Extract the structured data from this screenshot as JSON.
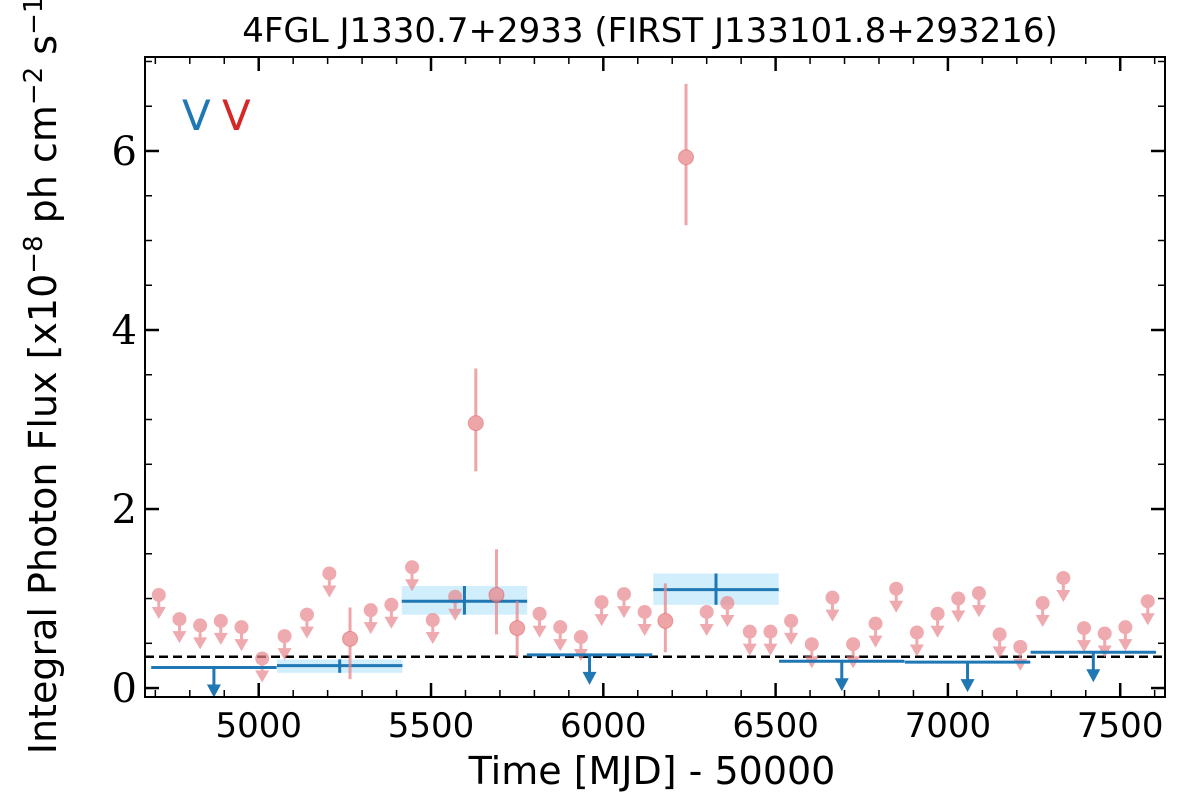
{
  "chart_data": {
    "type": "scatter",
    "title": "4FGL J1330.7+2933 (FIRST J133101.8+293216)",
    "xlabel": "Time [MJD] - 50000",
    "ylabel": "Integral Photon Flux [x10",
    "ylabel_exp": "−8",
    "ylabel_units_a": " ph cm",
    "ylabel_units_exp_a": "−2",
    "ylabel_units_b": " s",
    "ylabel_units_exp_b": "−1",
    "ylabel_close": "]",
    "xlim": [
      4670,
      7630
    ],
    "ylim": [
      -0.1,
      7.05
    ],
    "xticks": [
      5000,
      5500,
      6000,
      6500,
      7000,
      7500
    ],
    "yticks": [
      0,
      2,
      4,
      6
    ],
    "grid": false,
    "legend": {
      "placement": "top-left",
      "entries": [
        {
          "label": "V",
          "color": "#1f77b4"
        },
        {
          "label": "V",
          "color": "#d62728"
        }
      ]
    },
    "baseline": {
      "y": 0.35,
      "style": "dashed",
      "color": "#000000"
    },
    "colors": {
      "long_bins": "#1f77b4",
      "long_bin_band": "#c8ebfb",
      "short_bins": "#e8878c",
      "short_bins_dark": "#d62728"
    },
    "series": [
      {
        "name": "long_bins_detections",
        "points": [
          {
            "x": 5235,
            "y": 0.25,
            "xerr": 182,
            "ylo": 0.17,
            "yhi": 0.32
          },
          {
            "x": 5597,
            "y": 0.97,
            "xerr": 182,
            "ylo": 0.82,
            "yhi": 1.14
          },
          {
            "x": 6327,
            "y": 1.1,
            "xerr": 182,
            "ylo": 0.93,
            "yhi": 1.28
          }
        ]
      },
      {
        "name": "long_bins_upper_limits",
        "points": [
          {
            "x": 4870,
            "y": 0.23,
            "xerr": 182
          },
          {
            "x": 5960,
            "y": 0.37,
            "xerr": 182
          },
          {
            "x": 6692,
            "y": 0.3,
            "xerr": 182
          },
          {
            "x": 7057,
            "y": 0.29,
            "xerr": 182
          },
          {
            "x": 7422,
            "y": 0.4,
            "xerr": 182
          }
        ]
      },
      {
        "name": "short_bins_detections",
        "points": [
          {
            "x": 5265,
            "y": 0.55,
            "ylo": 0.1,
            "yhi": 0.9
          },
          {
            "x": 5630,
            "y": 2.96,
            "ylo": 2.42,
            "yhi": 3.57
          },
          {
            "x": 5690,
            "y": 1.04,
            "ylo": 0.6,
            "yhi": 1.55
          },
          {
            "x": 5750,
            "y": 0.67,
            "ylo": 0.35,
            "yhi": 0.97
          },
          {
            "x": 6180,
            "y": 0.75,
            "ylo": 0.4,
            "yhi": 1.17
          },
          {
            "x": 6240,
            "y": 5.93,
            "ylo": 5.17,
            "yhi": 6.75
          }
        ]
      },
      {
        "name": "short_bins_upper_limits",
        "points": [
          {
            "x": 4710,
            "y": 1.04
          },
          {
            "x": 4770,
            "y": 0.77
          },
          {
            "x": 4830,
            "y": 0.7
          },
          {
            "x": 4890,
            "y": 0.75
          },
          {
            "x": 4950,
            "y": 0.68
          },
          {
            "x": 5010,
            "y": 0.33
          },
          {
            "x": 5075,
            "y": 0.58
          },
          {
            "x": 5140,
            "y": 0.82
          },
          {
            "x": 5205,
            "y": 1.28
          },
          {
            "x": 5325,
            "y": 0.87
          },
          {
            "x": 5385,
            "y": 0.93
          },
          {
            "x": 5445,
            "y": 1.35
          },
          {
            "x": 5505,
            "y": 0.76
          },
          {
            "x": 5570,
            "y": 1.02
          },
          {
            "x": 5815,
            "y": 0.83
          },
          {
            "x": 5875,
            "y": 0.68
          },
          {
            "x": 5935,
            "y": 0.57
          },
          {
            "x": 5995,
            "y": 0.96
          },
          {
            "x": 6060,
            "y": 1.05
          },
          {
            "x": 6120,
            "y": 0.85
          },
          {
            "x": 6300,
            "y": 0.85
          },
          {
            "x": 6360,
            "y": 0.95
          },
          {
            "x": 6425,
            "y": 0.63
          },
          {
            "x": 6485,
            "y": 0.63
          },
          {
            "x": 6545,
            "y": 0.75
          },
          {
            "x": 6605,
            "y": 0.49
          },
          {
            "x": 6665,
            "y": 1.01
          },
          {
            "x": 6725,
            "y": 0.49
          },
          {
            "x": 6790,
            "y": 0.72
          },
          {
            "x": 6850,
            "y": 1.11
          },
          {
            "x": 6910,
            "y": 0.62
          },
          {
            "x": 6970,
            "y": 0.83
          },
          {
            "x": 7030,
            "y": 1.0
          },
          {
            "x": 7090,
            "y": 1.06
          },
          {
            "x": 7150,
            "y": 0.6
          },
          {
            "x": 7210,
            "y": 0.46
          },
          {
            "x": 7275,
            "y": 0.95
          },
          {
            "x": 7335,
            "y": 1.23
          },
          {
            "x": 7395,
            "y": 0.67
          },
          {
            "x": 7455,
            "y": 0.61
          },
          {
            "x": 7515,
            "y": 0.68
          },
          {
            "x": 7580,
            "y": 0.97
          }
        ]
      }
    ]
  }
}
